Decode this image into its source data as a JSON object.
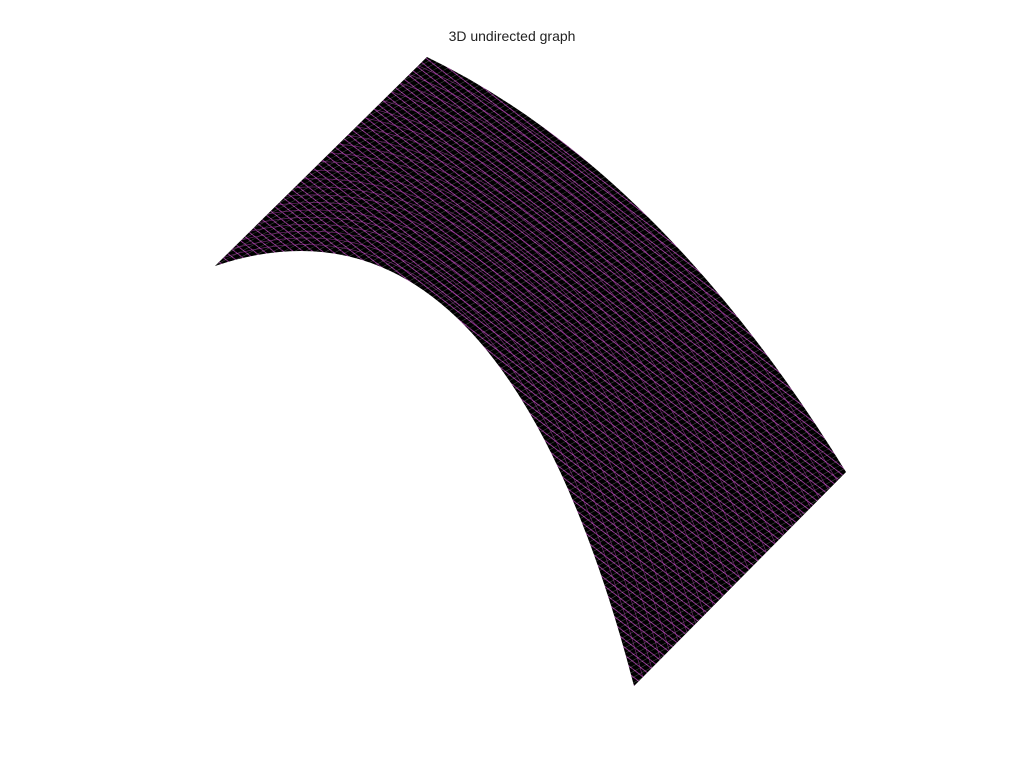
{
  "figure": {
    "title": "3D undirected graph"
  },
  "graph": {
    "edge_colors": {
      "primary": "#000000",
      "secondary": "#b040b0",
      "tertiary": "#ffffff"
    }
  }
}
